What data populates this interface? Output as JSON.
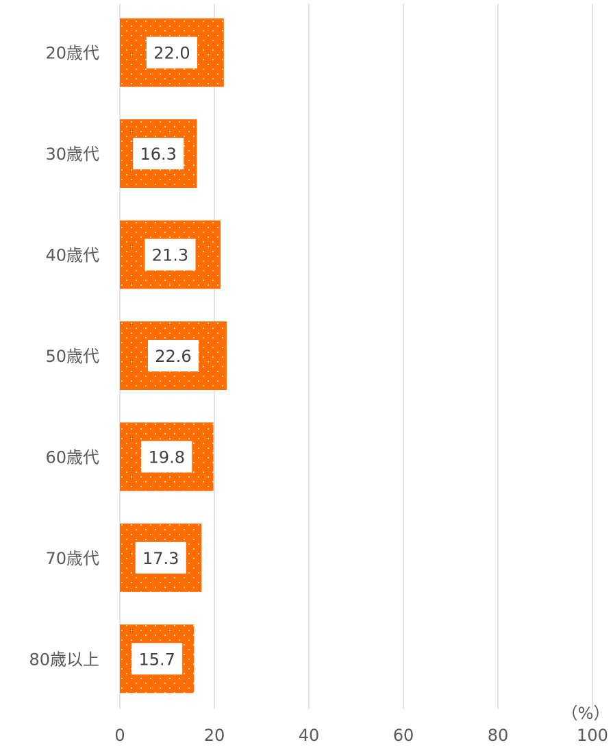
{
  "chart_data": {
    "type": "bar",
    "orientation": "horizontal",
    "categories": [
      "20歳代",
      "30歳代",
      "40歳代",
      "50歳代",
      "60歳代",
      "70歳代",
      "80歳以上"
    ],
    "values": [
      22.0,
      16.3,
      21.3,
      22.6,
      19.8,
      17.3,
      15.7
    ],
    "value_labels": [
      "22.0",
      "16.3",
      "21.3",
      "22.6",
      "19.8",
      "17.3",
      "15.7"
    ],
    "color": "#ff6d00",
    "x_label": "（%）",
    "xlim": [
      0,
      100
    ],
    "xticks": [
      0,
      20,
      40,
      60,
      80,
      100
    ],
    "grid": true
  }
}
